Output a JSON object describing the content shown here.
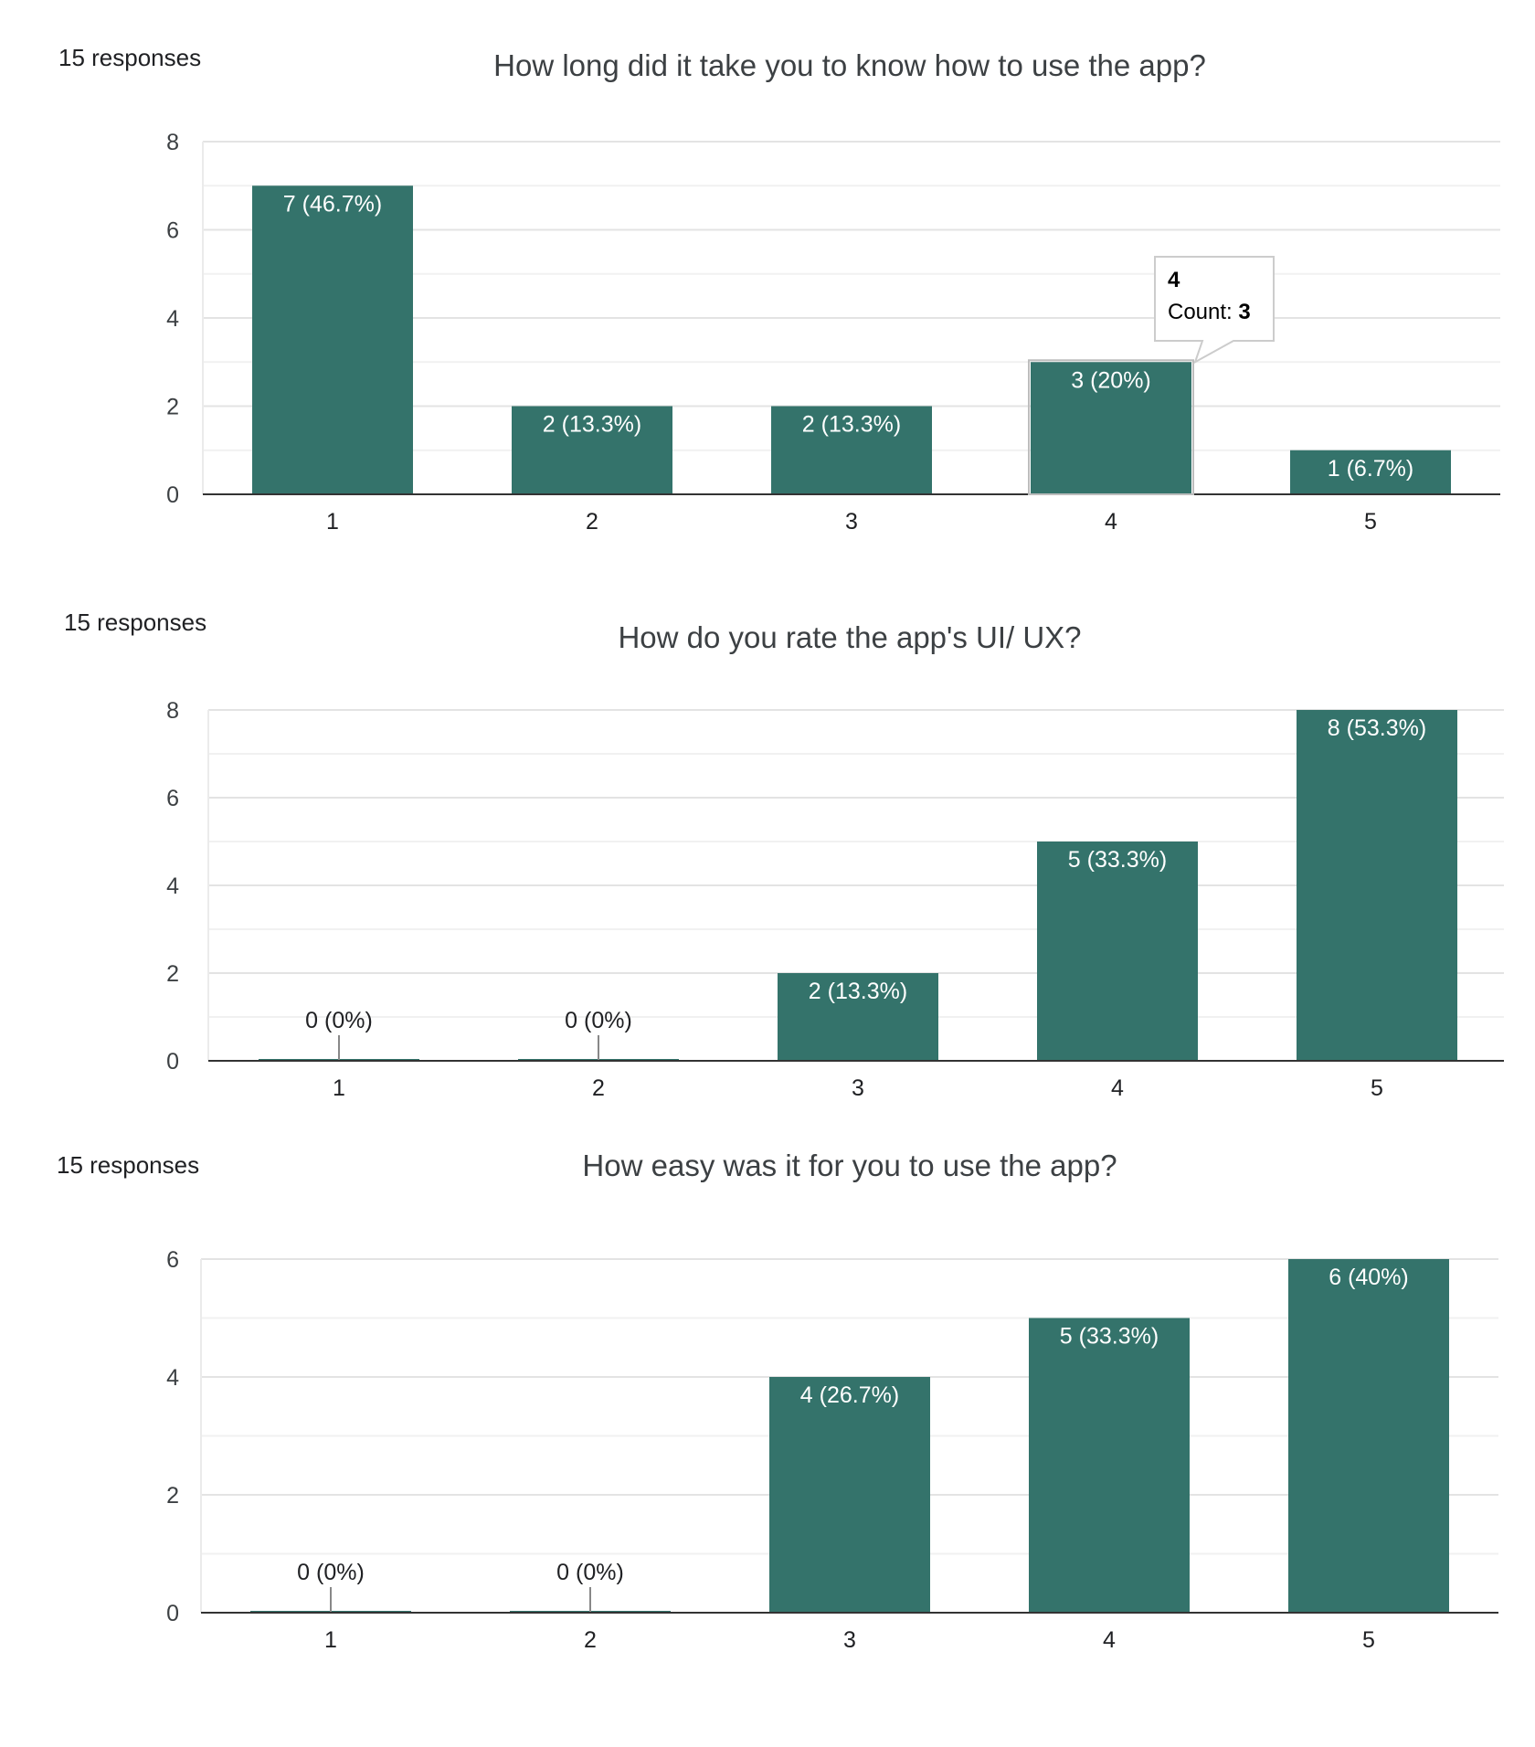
{
  "chart_data": [
    {
      "type": "bar",
      "responses_label": "15 responses",
      "title": "How long did it take you to know how to use the app?",
      "categories": [
        "1",
        "2",
        "3",
        "4",
        "5"
      ],
      "values": [
        7,
        2,
        2,
        3,
        1
      ],
      "value_labels": [
        "7 (46.7%)",
        "2 (13.3%)",
        "2 (13.3%)",
        "3 (20%)",
        "1 (6.7%)"
      ],
      "y_ticks": [
        "0",
        "2",
        "4",
        "6",
        "8"
      ],
      "ylim": [
        0,
        8
      ],
      "grid": true,
      "color": "#34736b",
      "tooltip": {
        "category": "4",
        "label": "Count: ",
        "value": "3"
      }
    },
    {
      "type": "bar",
      "responses_label": "15 responses",
      "title": "How do you rate the app's UI/ UX?",
      "categories": [
        "1",
        "2",
        "3",
        "4",
        "5"
      ],
      "values": [
        0,
        0,
        2,
        5,
        8
      ],
      "value_labels": [
        "0 (0%)",
        "0 (0%)",
        "2 (13.3%)",
        "5 (33.3%)",
        "8 (53.3%)"
      ],
      "y_ticks": [
        "0",
        "2",
        "4",
        "6",
        "8"
      ],
      "ylim": [
        0,
        8
      ],
      "grid": true,
      "color": "#34736b"
    },
    {
      "type": "bar",
      "responses_label": "15 responses",
      "title": "How easy was it for you to use the app?",
      "categories": [
        "1",
        "2",
        "3",
        "4",
        "5"
      ],
      "values": [
        0,
        0,
        4,
        5,
        6
      ],
      "value_labels": [
        "0 (0%)",
        "0 (0%)",
        "4 (26.7%)",
        "5 (33.3%)",
        "6 (40%)"
      ],
      "y_ticks": [
        "0",
        "2",
        "4",
        "6"
      ],
      "ylim": [
        0,
        6
      ],
      "grid": true,
      "color": "#34736b"
    }
  ]
}
